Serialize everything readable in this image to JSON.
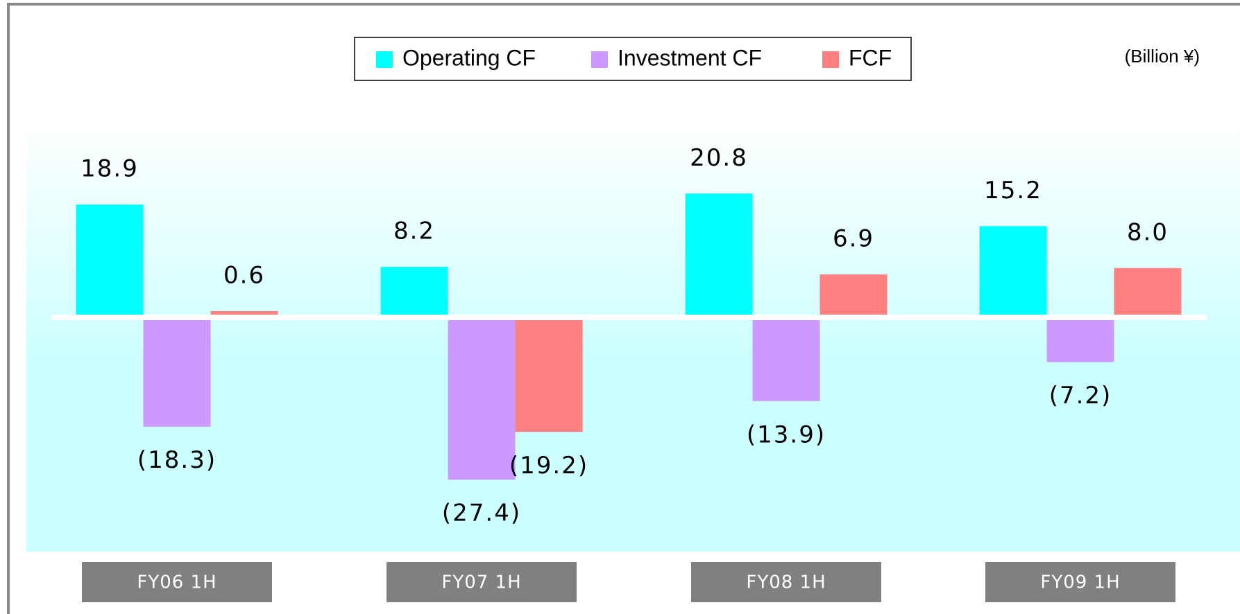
{
  "chart_data": {
    "type": "bar",
    "unit_label": "(Billion ¥)",
    "categories": [
      "FY06 1H",
      "FY07 1H",
      "FY08 1H",
      "FY09 1H"
    ],
    "series": [
      {
        "name": "Operating CF",
        "color": "#00ffff",
        "values": [
          18.9,
          8.2,
          20.8,
          15.2
        ],
        "value_labels": [
          "18.9",
          "8.2",
          "20.8",
          "15.2"
        ]
      },
      {
        "name": "Investment CF",
        "color": "#cc99ff",
        "values": [
          -18.3,
          -27.4,
          -13.9,
          -7.2
        ],
        "value_labels": [
          "(18.3)",
          "(27.4)",
          "(13.9)",
          "(7.2)"
        ]
      },
      {
        "name": "FCF",
        "color": "#ff8080",
        "values": [
          0.6,
          -19.2,
          6.9,
          8.0
        ],
        "value_labels": [
          "0.6",
          "(19.2)",
          "6.9",
          "8.0"
        ]
      }
    ],
    "legend": "top"
  }
}
